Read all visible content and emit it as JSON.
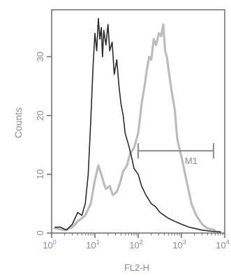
{
  "chart_data": {
    "type": "line",
    "title": "",
    "xlabel": "FL2-H",
    "ylabel": "Counts",
    "x_scale": "log",
    "xlim": [
      1,
      10000
    ],
    "ylim": [
      0,
      38
    ],
    "x_ticks": [
      {
        "value": 1,
        "base": "10",
        "exp": "0"
      },
      {
        "value": 10,
        "base": "10",
        "exp": "1"
      },
      {
        "value": 100,
        "base": "10",
        "exp": "2"
      },
      {
        "value": 1000,
        "base": "10",
        "exp": "3"
      },
      {
        "value": 10000,
        "base": "10",
        "exp": "4"
      }
    ],
    "y_ticks": [
      0,
      10,
      20,
      30
    ],
    "grid": false,
    "legend": "none",
    "series": [
      {
        "color": "#2a2a2a",
        "x": [
          1.2,
          1.6,
          2.2,
          3.0,
          4.0,
          5.0,
          6.0,
          7.0,
          8.0,
          9.0,
          10.0,
          11.0,
          12.0,
          13.0,
          14.0,
          15.0,
          16.0,
          18.0,
          20.0,
          22.0,
          25.0,
          28.0,
          32.0,
          36.0,
          40.0,
          45.0,
          50.0,
          60.0,
          70.0,
          80.0,
          100.0,
          120.0,
          150.0,
          200.0,
          250.0,
          320.0,
          400.0,
          500.0,
          700.0,
          1000.0,
          1500.0,
          2000.0,
          3000.0,
          5000.0,
          8000.0
        ],
        "y": [
          1.0,
          1.0,
          0.5,
          1.5,
          3.5,
          3.0,
          5.0,
          10.0,
          19.0,
          28.0,
          34.0,
          31.0,
          36.5,
          33.0,
          35.0,
          30.0,
          34.5,
          32.0,
          35.5,
          31.0,
          32.5,
          27.0,
          29.5,
          25.0,
          22.0,
          20.0,
          17.0,
          15.0,
          13.0,
          11.0,
          10.0,
          8.0,
          6.5,
          5.0,
          4.5,
          3.5,
          3.0,
          2.5,
          2.0,
          1.5,
          1.0,
          0.8,
          0.5,
          0.3,
          0.2
        ]
      },
      {
        "color": "#bcbcbc",
        "x": [
          1.2,
          2.0,
          3.0,
          4.0,
          6.0,
          8.0,
          10.0,
          12.0,
          14.0,
          16.0,
          18.0,
          22.0,
          26.0,
          32.0,
          38.0,
          45.0,
          55.0,
          65.0,
          80.0,
          100.0,
          120.0,
          140.0,
          160.0,
          180.0,
          200.0,
          230.0,
          260.0,
          300.0,
          340.0,
          380.0,
          420.0,
          460.0,
          520.0,
          600.0,
          700.0,
          800.0,
          1000.0,
          1300.0,
          1700.0,
          2200.0,
          3000.0,
          4000.0,
          6000.0
        ],
        "y": [
          0.8,
          0.5,
          1.0,
          2.0,
          3.0,
          5.0,
          9.0,
          11.5,
          10.0,
          8.5,
          7.5,
          8.0,
          6.5,
          7.0,
          8.5,
          10.5,
          11.5,
          13.5,
          14.5,
          17.0,
          22.0,
          25.0,
          28.0,
          30.0,
          29.5,
          33.0,
          32.0,
          34.0,
          33.5,
          35.5,
          31.0,
          30.0,
          27.0,
          24.0,
          21.0,
          16.0,
          13.0,
          9.0,
          5.0,
          3.0,
          1.5,
          0.8,
          0.5
        ]
      }
    ],
    "marker": {
      "label": "M1",
      "x_start": 100,
      "x_end": 5500,
      "y": 14
    }
  }
}
